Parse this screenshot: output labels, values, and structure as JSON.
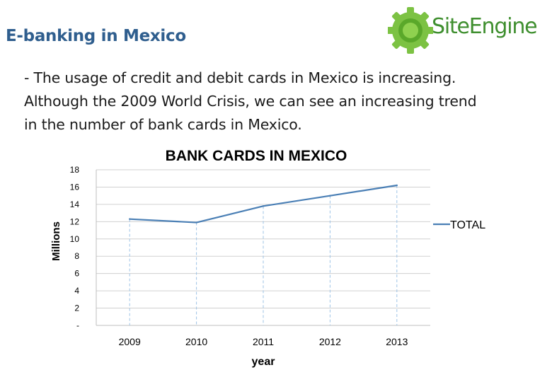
{
  "slide": {
    "title": "E-banking in Mexico",
    "logo_text": "SiteEngine",
    "body_lines": [
      "- The usage of credit and debit cards in Mexico is increasing.",
      "Although the 2009 World Crisis, we can see an increasing trend",
      "in the number of bank cards in Mexico."
    ]
  },
  "colors": {
    "title": "#2f5e8e",
    "series": "#4a7fb5",
    "logo": "#6fbf2f"
  },
  "chart_data": {
    "type": "line",
    "title": "BANK CARDS IN MEXICO",
    "xlabel": "year",
    "ylabel": "Millions",
    "categories": [
      "2009",
      "2010",
      "2011",
      "2012",
      "2013"
    ],
    "series": [
      {
        "name": "TOTAL",
        "values": [
          12.3,
          11.9,
          13.8,
          15.0,
          16.2
        ]
      }
    ],
    "ylim": [
      0,
      18
    ],
    "yticks": [
      0,
      2,
      4,
      6,
      8,
      10,
      12,
      14,
      16,
      18
    ],
    "ytick_labels": [
      "-",
      "2",
      "4",
      "6",
      "8",
      "10",
      "12",
      "14",
      "16",
      "18"
    ],
    "grid": "horizontal",
    "drop_lines": true,
    "legend_position": "right"
  }
}
